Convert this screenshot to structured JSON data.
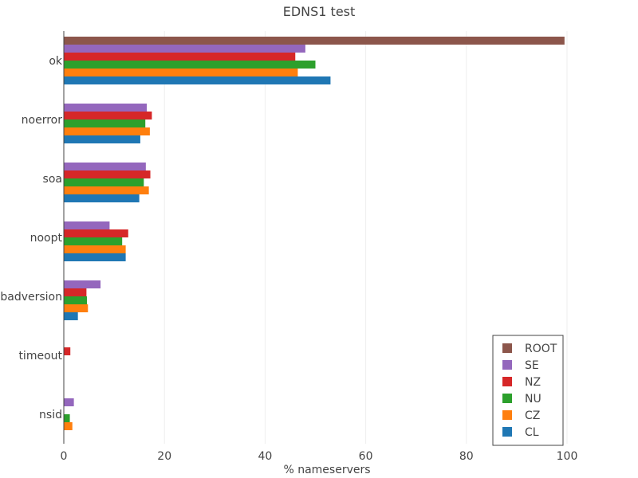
{
  "chart_data": {
    "type": "bar",
    "orientation": "horizontal",
    "title": "EDNS1 test",
    "xlabel": "% nameservers",
    "ylabel": "",
    "xlim": [
      0,
      100
    ],
    "xticks": [
      0,
      20,
      40,
      60,
      80,
      100
    ],
    "grid": true,
    "legend_position": "bottom-right",
    "categories": [
      "ok",
      "noerror",
      "soa",
      "noopt",
      "badversion",
      "timeout",
      "nsid"
    ],
    "series": [
      {
        "name": "ROOT",
        "color": "#8c564b",
        "values": [
          99.5,
          null,
          null,
          null,
          null,
          null,
          null
        ]
      },
      {
        "name": "SE",
        "color": "#9467bd",
        "values": [
          48,
          16.5,
          16.3,
          9.1,
          7.3,
          0,
          2.0
        ]
      },
      {
        "name": "NZ",
        "color": "#d62728",
        "values": [
          46,
          17.5,
          17.2,
          12.8,
          4.5,
          1.3,
          0
        ]
      },
      {
        "name": "NU",
        "color": "#2ca02c",
        "values": [
          50,
          16.2,
          15.9,
          11.6,
          4.6,
          0,
          1.2
        ]
      },
      {
        "name": "CZ",
        "color": "#ff7f0e",
        "values": [
          46.5,
          17.1,
          16.9,
          12.3,
          4.8,
          0,
          1.7
        ]
      },
      {
        "name": "CL",
        "color": "#1f77b4",
        "values": [
          53,
          15.2,
          15.0,
          12.3,
          2.8,
          0,
          0
        ]
      }
    ]
  }
}
